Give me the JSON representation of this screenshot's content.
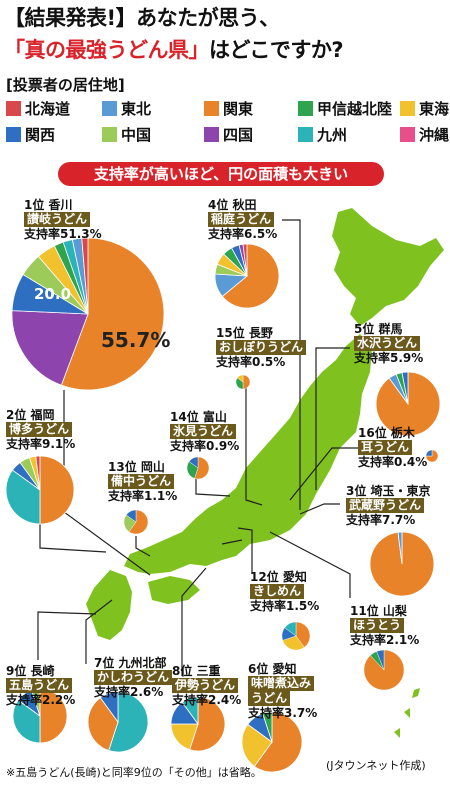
{
  "title": {
    "line1": "【結果発表!】あなたが思う、",
    "highlight": "「真の最強うどん県」",
    "line2_rest": "はどこですか?"
  },
  "legend": {
    "title": "[投票者の居住地]",
    "items": [
      {
        "label": "北海道",
        "color": "#d9484a"
      },
      {
        "label": "東北",
        "color": "#5b9bd5"
      },
      {
        "label": "関東",
        "color": "#e8832a"
      },
      {
        "label": "甲信越北陸",
        "color": "#2ea44f"
      },
      {
        "label": "東海",
        "color": "#f2c12e"
      },
      {
        "label": "関西",
        "color": "#2f6fc2"
      },
      {
        "label": "中国",
        "color": "#9ccb5a"
      },
      {
        "label": "四国",
        "color": "#8e44ad"
      },
      {
        "label": "九州",
        "color": "#2bb3b8"
      },
      {
        "label": "沖縄",
        "color": "#e84f8a"
      }
    ]
  },
  "banner": "支持率が高いほど、円の面積も大きい",
  "chart_data": {
    "type": "pie",
    "series": [
      {
        "rank": "1",
        "rank_suffix": "位",
        "pref": "香川",
        "udon": "讃岐うどん",
        "rate_label": "支持率",
        "rate": "51.3%",
        "slices": [
          {
            "region": "関東",
            "value": 55.7
          },
          {
            "region": "四国",
            "value": 20.0
          },
          {
            "region": "関西",
            "value": 8
          },
          {
            "region": "中国",
            "value": 5
          },
          {
            "region": "東海",
            "value": 4
          },
          {
            "region": "甲信越北陸",
            "value": 2
          },
          {
            "region": "九州",
            "value": 2
          },
          {
            "region": "東北",
            "value": 2
          },
          {
            "region": "北海道",
            "value": 1.3
          }
        ],
        "data_labels": [
          "55.7%",
          "20.0"
        ]
      },
      {
        "rank": "4",
        "rank_suffix": "位",
        "pref": "秋田",
        "udon": "稲庭うどん",
        "rate_label": "支持率",
        "rate": "6.5%",
        "slices": [
          {
            "region": "関東",
            "value": 64
          },
          {
            "region": "東北",
            "value": 12
          },
          {
            "region": "中国",
            "value": 5
          },
          {
            "region": "東海",
            "value": 6
          },
          {
            "region": "甲信越北陸",
            "value": 5
          },
          {
            "region": "関西",
            "value": 4
          },
          {
            "region": "四国",
            "value": 2
          },
          {
            "region": "北海道",
            "value": 2
          }
        ]
      },
      {
        "rank": "15",
        "rank_suffix": "位",
        "pref": "長野",
        "udon": "おしぼりうどん",
        "rate_label": "支持率",
        "rate": "0.5%",
        "slices": [
          {
            "region": "関東",
            "value": 50
          },
          {
            "region": "甲信越北陸",
            "value": 35
          },
          {
            "region": "東海",
            "value": 15
          }
        ]
      },
      {
        "rank": "5",
        "rank_suffix": "位",
        "pref": "群馬",
        "udon": "水沢うどん",
        "rate_label": "支持率",
        "rate": "5.9%",
        "slices": [
          {
            "region": "関東",
            "value": 90
          },
          {
            "region": "東北",
            "value": 4
          },
          {
            "region": "甲信越北陸",
            "value": 3
          },
          {
            "region": "関西",
            "value": 3
          }
        ]
      },
      {
        "rank": "2",
        "rank_suffix": "位",
        "pref": "福岡",
        "udon": "博多うどん",
        "rate_label": "支持率",
        "rate": "9.1%",
        "slices": [
          {
            "region": "関東",
            "value": 50
          },
          {
            "region": "九州",
            "value": 35
          },
          {
            "region": "関西",
            "value": 5
          },
          {
            "region": "中国",
            "value": 5
          },
          {
            "region": "東海",
            "value": 3
          },
          {
            "region": "北海道",
            "value": 2
          }
        ]
      },
      {
        "rank": "14",
        "rank_suffix": "位",
        "pref": "富山",
        "udon": "氷見うどん",
        "rate_label": "支持率",
        "rate": "0.9%",
        "slices": [
          {
            "region": "関東",
            "value": 55
          },
          {
            "region": "甲信越北陸",
            "value": 30
          },
          {
            "region": "関西",
            "value": 15
          }
        ]
      },
      {
        "rank": "13",
        "rank_suffix": "位",
        "pref": "岡山",
        "udon": "備中うどん",
        "rate_label": "支持率",
        "rate": "1.1%",
        "slices": [
          {
            "region": "関東",
            "value": 60
          },
          {
            "region": "中国",
            "value": 25
          },
          {
            "region": "関西",
            "value": 15
          }
        ]
      },
      {
        "rank": "16",
        "rank_suffix": "位",
        "pref": "栃木",
        "udon": "耳うどん",
        "rate_label": "支持率",
        "rate": "0.4%",
        "slices": [
          {
            "region": "関東",
            "value": 75
          },
          {
            "region": "関西",
            "value": 25
          }
        ]
      },
      {
        "rank": "3",
        "rank_suffix": "位",
        "pref": "埼玉・東京",
        "udon": "武蔵野うどん",
        "rate_label": "支持率",
        "rate": "7.7%",
        "slices": [
          {
            "region": "関東",
            "value": 98
          },
          {
            "region": "東北",
            "value": 2
          }
        ]
      },
      {
        "rank": "12",
        "rank_suffix": "位",
        "pref": "愛知",
        "udon": "きしめん",
        "rate_label": "支持率",
        "rate": "1.5%",
        "slices": [
          {
            "region": "関東",
            "value": 40
          },
          {
            "region": "東海",
            "value": 30
          },
          {
            "region": "関西",
            "value": 15
          },
          {
            "region": "九州",
            "value": 15
          }
        ]
      },
      {
        "rank": "11",
        "rank_suffix": "位",
        "pref": "山梨",
        "udon": "ほうとう",
        "rate_label": "支持率",
        "rate": "2.1%",
        "slices": [
          {
            "region": "関東",
            "value": 88
          },
          {
            "region": "甲信越北陸",
            "value": 6
          },
          {
            "region": "関西",
            "value": 6
          }
        ]
      },
      {
        "rank": "9",
        "rank_suffix": "位",
        "pref": "長崎",
        "udon": "五島うどん",
        "rate_label": "支持率",
        "rate": "2.2%",
        "slices": [
          {
            "region": "関東",
            "value": 50
          },
          {
            "region": "九州",
            "value": 35
          },
          {
            "region": "関西",
            "value": 10
          },
          {
            "region": "中国",
            "value": 5
          }
        ]
      },
      {
        "rank": "7",
        "rank_suffix": "位",
        "pref": "九州北部",
        "udon": "かしわうどん",
        "rate_label": "支持率",
        "rate": "2.6%",
        "slices": [
          {
            "region": "九州",
            "value": 55
          },
          {
            "region": "関東",
            "value": 35
          },
          {
            "region": "関西",
            "value": 10
          }
        ]
      },
      {
        "rank": "8",
        "rank_suffix": "位",
        "pref": "三重",
        "udon": "伊勢うどん",
        "rate_label": "支持率",
        "rate": "2.4%",
        "slices": [
          {
            "region": "関東",
            "value": 55
          },
          {
            "region": "東海",
            "value": 20
          },
          {
            "region": "関西",
            "value": 15
          },
          {
            "region": "九州",
            "value": 10
          }
        ]
      },
      {
        "rank": "6",
        "rank_suffix": "位",
        "pref": "愛知",
        "udon": "味噌煮込み\nうどん",
        "rate_label": "支持率",
        "rate": "3.7%",
        "slices": [
          {
            "region": "関東",
            "value": 60
          },
          {
            "region": "東海",
            "value": 25
          },
          {
            "region": "関西",
            "value": 10
          },
          {
            "region": "甲信越北陸",
            "value": 5
          }
        ]
      }
    ]
  },
  "note": "※五島うどん(長崎)と同率9位の「その他」は省略。",
  "source": "(Jタウンネット作成)"
}
